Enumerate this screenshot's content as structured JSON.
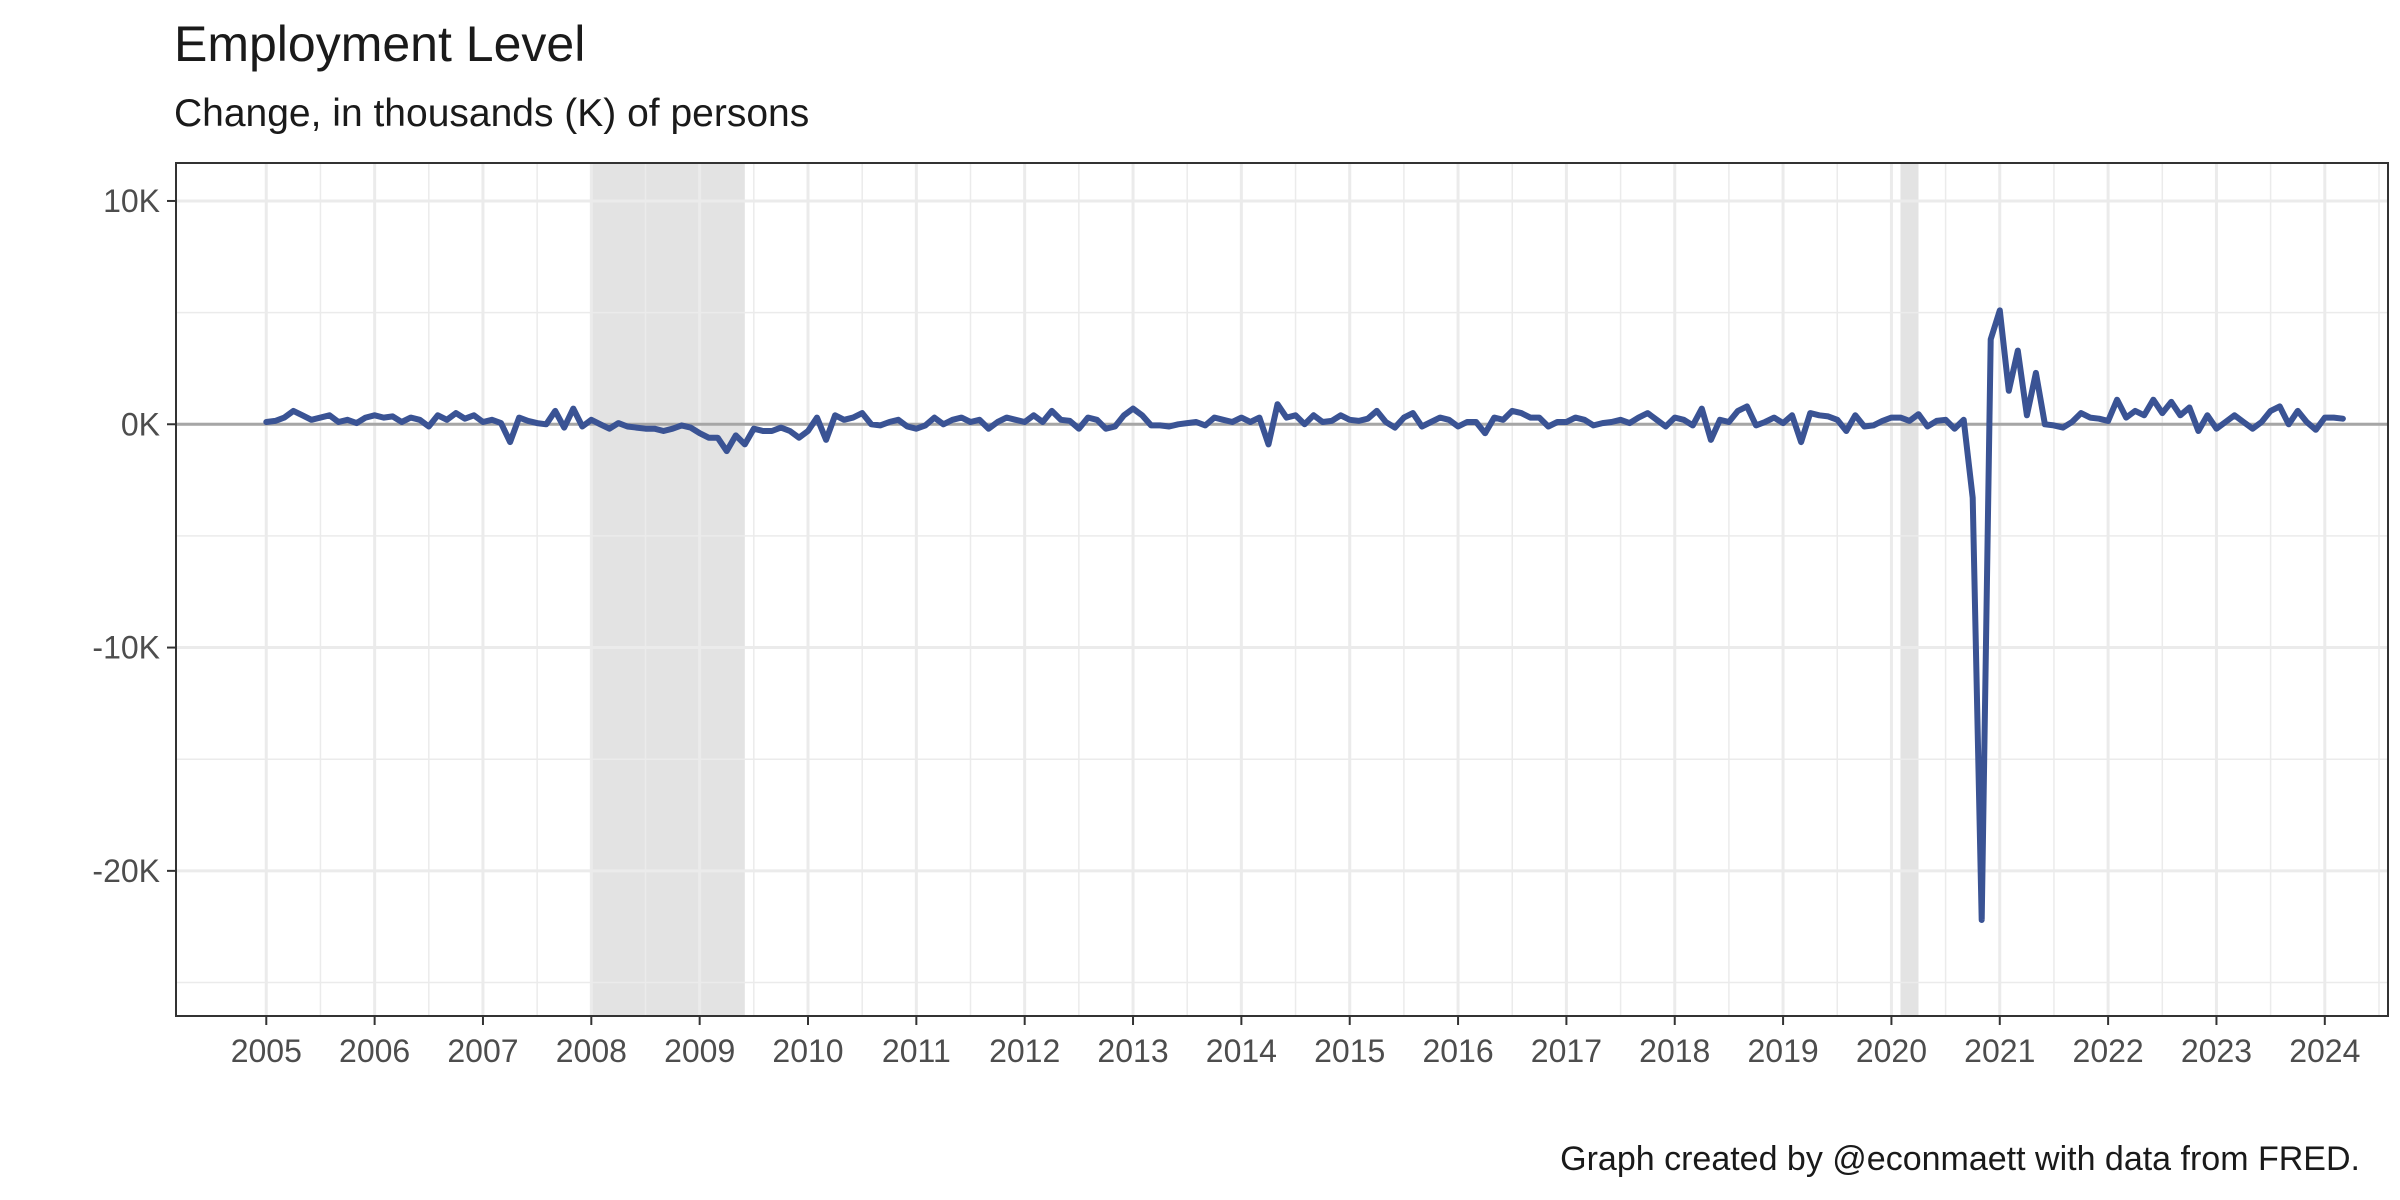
{
  "chart_data": {
    "type": "line",
    "title": "Employment Level",
    "subtitle": "Change, in thousands (K) of persons",
    "caption": "Graph created by @econmaett with data from FRED.",
    "xlabel": "",
    "ylabel": "",
    "x_ticks": [
      "2005",
      "2006",
      "2007",
      "2008",
      "2009",
      "2010",
      "2011",
      "2012",
      "2013",
      "2014",
      "2015",
      "2016",
      "2017",
      "2018",
      "2019",
      "2020",
      "2021",
      "2022",
      "2023",
      "2024"
    ],
    "y_ticks": [
      {
        "value": 10000,
        "label": "10K"
      },
      {
        "value": 0,
        "label": "0K"
      },
      {
        "value": -10000,
        "label": "-10K"
      },
      {
        "value": -20000,
        "label": "-20K"
      }
    ],
    "xlim": [
      "2004-03-01",
      "2024-08-01"
    ],
    "ylim": [
      -26500,
      11700
    ],
    "grid": true,
    "zero_line": true,
    "colors": {
      "line": "#3a5394",
      "recession": "#e3e3e3",
      "grid": "#ebebeb",
      "zero": "#a6a6a6",
      "border": "#333333"
    },
    "recessions": [
      {
        "start": "2008-01-01",
        "end": "2009-06-01"
      },
      {
        "start": "2020-02-01",
        "end": "2020-04-01"
      }
    ],
    "series": [
      {
        "x_start": "2005-01-01",
        "frequency": "monthly",
        "values": [
          100,
          150,
          300,
          600,
          400,
          200,
          300,
          400,
          100,
          200,
          50,
          300,
          400,
          300,
          350,
          100,
          300,
          200,
          -100,
          400,
          200,
          500,
          250,
          400,
          100,
          200,
          50,
          -800,
          300,
          150,
          50,
          0,
          600,
          -150,
          700,
          -100,
          200,
          0,
          -200,
          50,
          -100,
          -150,
          -200,
          -200,
          -300,
          -200,
          -50,
          -150,
          -400,
          -600,
          -600,
          -1200,
          -500,
          -900,
          -200,
          -300,
          -300,
          -150,
          -300,
          -600,
          -300,
          300,
          -700,
          400,
          200,
          300,
          500,
          0,
          -50,
          100,
          200,
          -100,
          -200,
          -50,
          300,
          0,
          200,
          300,
          100,
          200,
          -200,
          100,
          300,
          200,
          100,
          400,
          100,
          600,
          200,
          150,
          -200,
          300,
          200,
          -200,
          -100,
          400,
          700,
          400,
          -50,
          -50,
          -100,
          0,
          50,
          100,
          -50,
          300,
          200,
          100,
          300,
          100,
          300,
          -900,
          900,
          300,
          400,
          0,
          400,
          100,
          150,
          400,
          200,
          150,
          250,
          600,
          100,
          -150,
          300,
          500,
          -100,
          100,
          300,
          200,
          -100,
          100,
          100,
          -400,
          300,
          200,
          600,
          500,
          300,
          300,
          -100,
          100,
          100,
          300,
          200,
          -50,
          50,
          100,
          200,
          50,
          300,
          500,
          200,
          -100,
          300,
          200,
          -50,
          700,
          -700,
          200,
          100,
          600,
          800,
          -50,
          100,
          300,
          50,
          400,
          -800,
          500,
          400,
          350,
          200,
          -300,
          400,
          -100,
          -50,
          150,
          300,
          300,
          150,
          450,
          -100,
          150,
          200,
          -200,
          200,
          -3300,
          -22200,
          3800,
          5100,
          1500,
          3300,
          400,
          2300,
          0,
          -50,
          -150,
          100,
          500,
          300,
          250,
          150,
          1100,
          300,
          600,
          400,
          1100,
          500,
          1000,
          400,
          750,
          -300,
          400,
          -200,
          100,
          400,
          100,
          -200,
          100,
          600,
          800,
          0,
          600,
          100,
          -250,
          300,
          300,
          250
        ]
      }
    ]
  }
}
